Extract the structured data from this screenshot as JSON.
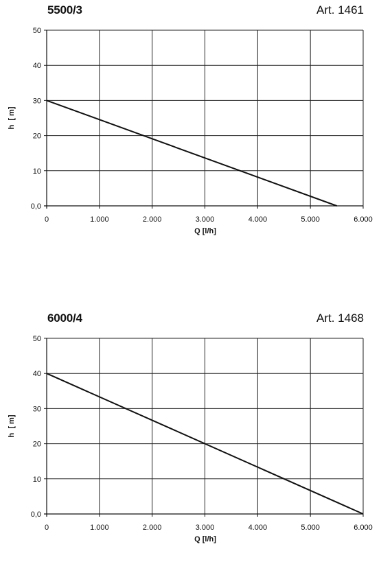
{
  "chart_data": [
    {
      "type": "line",
      "title": "5500/3",
      "article": "Art. 1461",
      "xlabel": "Q [l/h]",
      "ylabel": "h  [ m]",
      "xlim": [
        0,
        6000
      ],
      "ylim": [
        0,
        50
      ],
      "x_ticks": [
        "0",
        "1.000",
        "2.000",
        "3.000",
        "4.000",
        "5.000",
        "6.000"
      ],
      "y_ticks": [
        "0,0",
        "10",
        "20",
        "30",
        "40",
        "50"
      ],
      "grid": true,
      "series": [
        {
          "x": [
            0,
            5500
          ],
          "y": [
            30,
            0
          ]
        }
      ]
    },
    {
      "type": "line",
      "title": "6000/4",
      "article": "Art. 1468",
      "xlabel": "Q [l/h]",
      "ylabel": "h  [ m]",
      "xlim": [
        0,
        6000
      ],
      "ylim": [
        0,
        50
      ],
      "x_ticks": [
        "0",
        "1.000",
        "2.000",
        "3.000",
        "4.000",
        "5.000",
        "6.000"
      ],
      "y_ticks": [
        "0,0",
        "10",
        "20",
        "30",
        "40",
        "50"
      ],
      "grid": true,
      "series": [
        {
          "x": [
            0,
            6000
          ],
          "y": [
            40,
            0
          ]
        }
      ]
    }
  ]
}
